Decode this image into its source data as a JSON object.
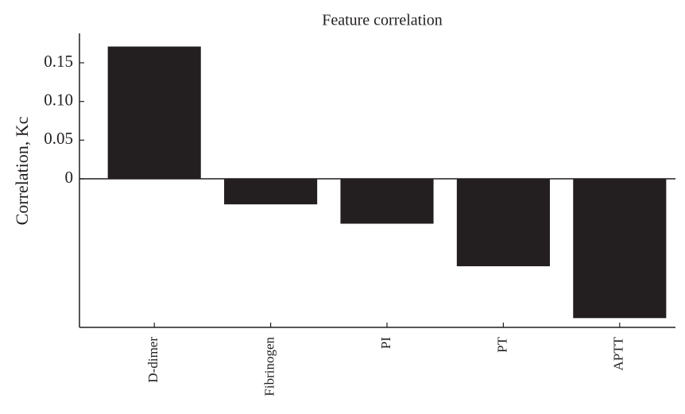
{
  "chart_data": {
    "type": "bar",
    "title": "Feature correlation",
    "y_label": "Correlation, Kc",
    "categories": [
      "D-dimer",
      "Fibrinogen",
      "PI",
      "PT",
      "APTT"
    ],
    "values": [
      0.171,
      -0.033,
      -0.058,
      -0.113,
      -0.18
    ],
    "color": "#231f20",
    "ylim": [
      -0.192,
      0.188
    ],
    "yticks": [
      0,
      0.05,
      {
        "value": 0.1,
        "label": "0.10"
      },
      0.15
    ]
  }
}
